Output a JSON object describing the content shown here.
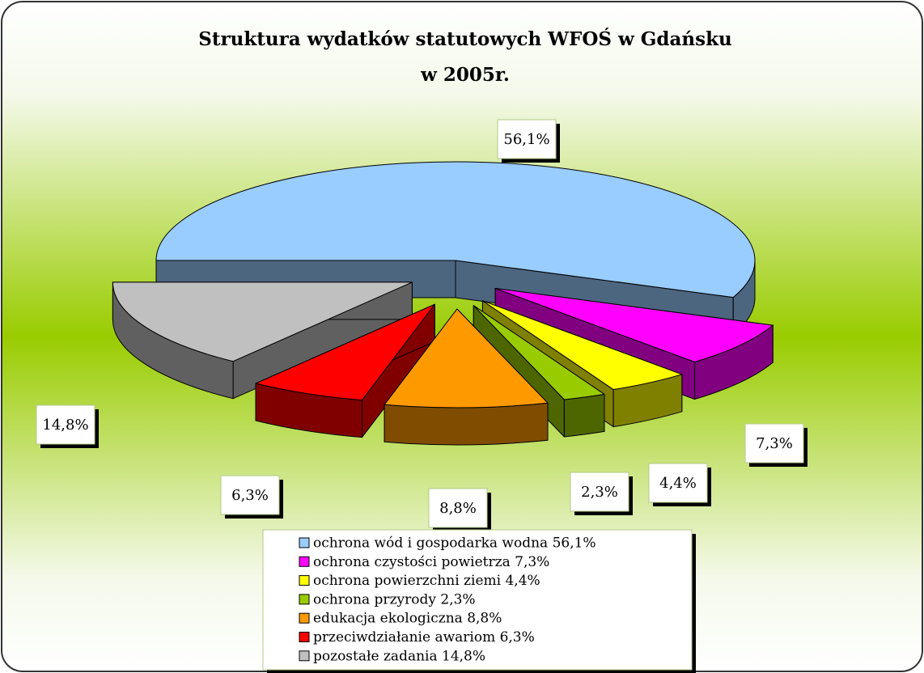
{
  "chart_data": {
    "type": "pie",
    "title": "Struktura wydatków statutowych WFOŚ w Gdańsku w 2005r.",
    "categories": [
      "ochrona wód i gospodarka wodna 56,1%",
      "ochrona czystości powietrza 7,3%",
      "ochrona powierzchni ziemi 4,4%",
      "ochrona przyrody 2,3%",
      "edukacja ekologiczna 8,8%",
      "przeciwdziałanie awariom 6,3%",
      "pozostałe zadania 14,8%"
    ],
    "values": [
      56.1,
      7.3,
      4.4,
      2.3,
      8.8,
      6.3,
      14.8
    ],
    "value_labels": [
      "56,1%",
      "7,3%",
      "4,4%",
      "2,3%",
      "8,8%",
      "6,3%",
      "14,8%"
    ],
    "colors": [
      "#99ccff",
      "#ff00ff",
      "#ffff00",
      "#99cc00",
      "#ff9900",
      "#ff0000",
      "#c0c0c0"
    ],
    "legend": "bottom"
  }
}
